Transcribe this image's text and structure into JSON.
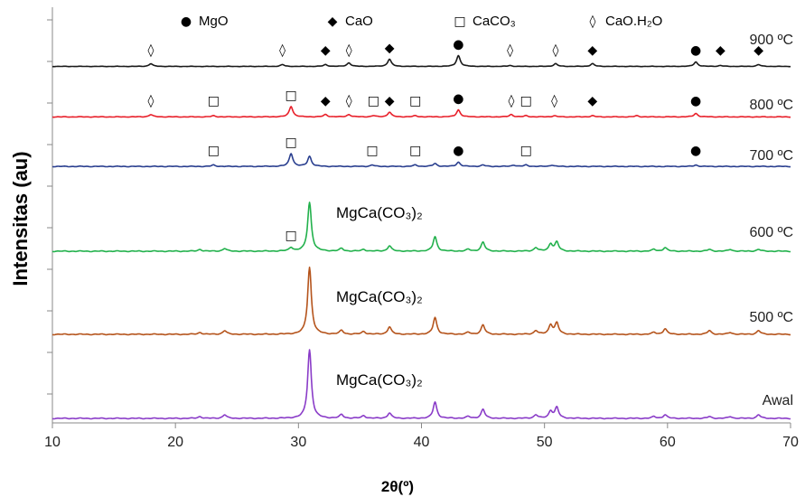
{
  "chart_data": {
    "type": "line",
    "xlabel": "2θ(º)",
    "ylabel": "Intensitas (au)",
    "xlim": [
      10,
      70
    ],
    "x_ticks": [
      10,
      20,
      30,
      40,
      50,
      60,
      70
    ],
    "x_tick_labels": [
      "10",
      "20",
      "30",
      "40",
      "50",
      "60",
      "70"
    ],
    "grid": false,
    "legend": {
      "placement": "top",
      "entries": [
        {
          "symbol": "●",
          "symbol_name": "filled-circle",
          "label": "MgO"
        },
        {
          "symbol": "◆",
          "symbol_name": "filled-diamond",
          "label": "CaO"
        },
        {
          "symbol": "□",
          "symbol_name": "open-square",
          "label": "CaCO₃"
        },
        {
          "symbol": "◊",
          "symbol_name": "open-diamond",
          "label": "CaO.H₂O"
        }
      ]
    },
    "series": [
      {
        "name": "900 ºC",
        "color": "#1a1a1a",
        "baseline": 0.5,
        "peaks": [
          [
            18.0,
            3
          ],
          [
            28.7,
            2
          ],
          [
            32.2,
            2
          ],
          [
            34.1,
            4
          ],
          [
            37.4,
            8
          ],
          [
            43.0,
            12
          ],
          [
            47.2,
            1
          ],
          [
            50.9,
            3
          ],
          [
            53.9,
            3
          ],
          [
            62.3,
            5
          ],
          [
            64.3,
            1
          ],
          [
            67.4,
            2
          ]
        ],
        "markers": [
          {
            "x": 18.0,
            "symbol": "◊"
          },
          {
            "x": 28.7,
            "symbol": "◊"
          },
          {
            "x": 32.2,
            "symbol": "◆"
          },
          {
            "x": 34.1,
            "symbol": "◊"
          },
          {
            "x": 37.4,
            "symbol": "◆"
          },
          {
            "x": 43.0,
            "symbol": "●"
          },
          {
            "x": 47.2,
            "symbol": "◊"
          },
          {
            "x": 50.9,
            "symbol": "◊"
          },
          {
            "x": 53.9,
            "symbol": "◆"
          },
          {
            "x": 62.3,
            "symbol": "●"
          },
          {
            "x": 64.3,
            "symbol": "◆"
          },
          {
            "x": 67.4,
            "symbol": "◆"
          }
        ]
      },
      {
        "name": "800 ºC",
        "color": "#e8202a",
        "baseline": 0.5,
        "peaks": [
          [
            18.0,
            2
          ],
          [
            23.1,
            1
          ],
          [
            29.4,
            9
          ],
          [
            32.2,
            2
          ],
          [
            34.1,
            2
          ],
          [
            36.1,
            1
          ],
          [
            37.4,
            4
          ],
          [
            39.5,
            1
          ],
          [
            43.0,
            6
          ],
          [
            47.3,
            2
          ],
          [
            48.5,
            1
          ],
          [
            50.8,
            1
          ],
          [
            53.9,
            1
          ],
          [
            57.5,
            1
          ],
          [
            62.3,
            3
          ]
        ],
        "markers": [
          {
            "x": 18.0,
            "symbol": "◊"
          },
          {
            "x": 23.1,
            "symbol": "□"
          },
          {
            "x": 29.4,
            "symbol": "□"
          },
          {
            "x": 32.2,
            "symbol": "◆"
          },
          {
            "x": 34.1,
            "symbol": "◊"
          },
          {
            "x": 36.1,
            "symbol": "□"
          },
          {
            "x": 37.4,
            "symbol": "◆"
          },
          {
            "x": 39.5,
            "symbol": "□"
          },
          {
            "x": 43.0,
            "symbol": "●"
          },
          {
            "x": 47.3,
            "symbol": "◊"
          },
          {
            "x": 48.5,
            "symbol": "□"
          },
          {
            "x": 50.8,
            "symbol": "◊"
          },
          {
            "x": 53.9,
            "symbol": "◆"
          },
          {
            "x": 62.3,
            "symbol": "●"
          }
        ]
      },
      {
        "name": "700 ºC",
        "color": "#2a3f8f",
        "baseline": 0.5,
        "peaks": [
          [
            23.1,
            1
          ],
          [
            29.4,
            9
          ],
          [
            30.9,
            7
          ],
          [
            36.0,
            1
          ],
          [
            39.5,
            1
          ],
          [
            41.1,
            2
          ],
          [
            43.0,
            3
          ],
          [
            45.0,
            1
          ],
          [
            47.5,
            1
          ],
          [
            48.5,
            1
          ],
          [
            50.6,
            1
          ],
          [
            62.3,
            1
          ]
        ],
        "markers": [
          {
            "x": 23.1,
            "symbol": "□"
          },
          {
            "x": 29.4,
            "symbol": "□"
          },
          {
            "x": 36.0,
            "symbol": "□"
          },
          {
            "x": 39.5,
            "symbol": "□"
          },
          {
            "x": 43.0,
            "symbol": "●"
          },
          {
            "x": 48.5,
            "symbol": "□"
          },
          {
            "x": 62.3,
            "symbol": "●"
          }
        ]
      },
      {
        "name": "600 ºC",
        "color": "#22b14c",
        "baseline": 0.5,
        "compound_label": "MgCa(CO₃)₂",
        "peaks": [
          [
            22.0,
            1
          ],
          [
            24.0,
            1.5
          ],
          [
            29.4,
            2
          ],
          [
            30.9,
            27
          ],
          [
            33.5,
            1.5
          ],
          [
            35.3,
            1
          ],
          [
            37.4,
            3
          ],
          [
            41.1,
            8
          ],
          [
            43.8,
            1
          ],
          [
            45.0,
            5
          ],
          [
            49.3,
            2
          ],
          [
            50.5,
            4
          ],
          [
            51.0,
            5
          ],
          [
            58.9,
            1
          ],
          [
            59.8,
            2
          ],
          [
            63.4,
            1
          ],
          [
            65.1,
            1
          ],
          [
            67.4,
            1
          ]
        ],
        "markers": [
          {
            "x": 29.4,
            "symbol": "□"
          }
        ]
      },
      {
        "name": "500 ºC",
        "color": "#b5541c",
        "baseline": 0.5,
        "compound_label": "MgCa(CO₃)₂",
        "peaks": [
          [
            22.0,
            1
          ],
          [
            24.0,
            2
          ],
          [
            30.9,
            36
          ],
          [
            33.5,
            2
          ],
          [
            35.3,
            1.5
          ],
          [
            37.4,
            4
          ],
          [
            41.1,
            9
          ],
          [
            43.8,
            1
          ],
          [
            45.0,
            5
          ],
          [
            49.3,
            2
          ],
          [
            50.5,
            5
          ],
          [
            51.0,
            6
          ],
          [
            58.9,
            1
          ],
          [
            59.8,
            3
          ],
          [
            63.4,
            2
          ],
          [
            65.1,
            1
          ],
          [
            67.4,
            2
          ]
        ],
        "markers": []
      },
      {
        "name": "Awal",
        "color": "#8a3cc8",
        "baseline": 0.5,
        "compound_label": "MgCa(CO₃)₂",
        "peaks": [
          [
            22.0,
            1
          ],
          [
            24.0,
            2
          ],
          [
            30.9,
            38
          ],
          [
            33.5,
            2
          ],
          [
            35.3,
            1.5
          ],
          [
            37.4,
            3
          ],
          [
            41.1,
            9
          ],
          [
            43.8,
            1
          ],
          [
            45.0,
            5
          ],
          [
            49.3,
            2
          ],
          [
            50.5,
            4
          ],
          [
            51.0,
            6
          ],
          [
            58.9,
            1
          ],
          [
            59.8,
            2
          ],
          [
            63.4,
            1
          ],
          [
            65.1,
            1
          ],
          [
            67.4,
            2
          ]
        ],
        "markers": []
      }
    ]
  }
}
